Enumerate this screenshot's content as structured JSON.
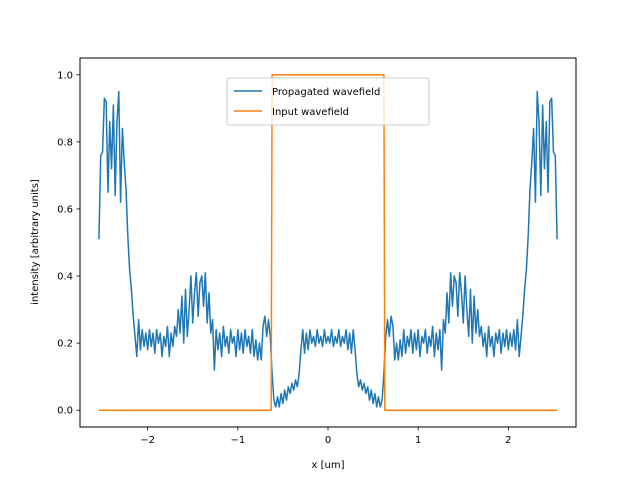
{
  "chart_data": {
    "type": "line",
    "title": "",
    "xlabel": "x [um]",
    "ylabel": "intensity [arbitrary units]",
    "xlim": [
      -2.75,
      2.75
    ],
    "ylim": [
      -0.05,
      1.05
    ],
    "xticks": [
      -2,
      -1,
      0,
      1,
      2
    ],
    "xtick_labels": [
      "−2",
      "−1",
      "0",
      "1",
      "2"
    ],
    "yticks": [
      0.0,
      0.2,
      0.4,
      0.6,
      0.8,
      1.0
    ],
    "ytick_labels": [
      "0.0",
      "0.2",
      "0.4",
      "0.6",
      "0.8",
      "1.0"
    ],
    "grid": false,
    "legend_position": "upper-center",
    "series": [
      {
        "name": "Propagated wavefield",
        "color": "#1f77b4",
        "points": [
          [
            -2.54,
            0.51
          ],
          [
            -2.52,
            0.76
          ],
          [
            -2.5,
            0.77
          ],
          [
            -2.48,
            0.93
          ],
          [
            -2.46,
            0.92
          ],
          [
            -2.44,
            0.65
          ],
          [
            -2.42,
            0.86
          ],
          [
            -2.4,
            0.72
          ],
          [
            -2.38,
            0.91
          ],
          [
            -2.36,
            0.64
          ],
          [
            -2.34,
            0.86
          ],
          [
            -2.32,
            0.95
          ],
          [
            -2.3,
            0.62
          ],
          [
            -2.28,
            0.84
          ],
          [
            -2.26,
            0.74
          ],
          [
            -2.24,
            0.66
          ],
          [
            -2.22,
            0.52
          ],
          [
            -2.2,
            0.42
          ],
          [
            -2.18,
            0.36
          ],
          [
            -2.16,
            0.28
          ],
          [
            -2.14,
            0.22
          ],
          [
            -2.12,
            0.16
          ],
          [
            -2.1,
            0.27
          ],
          [
            -2.08,
            0.18
          ],
          [
            -2.06,
            0.24
          ],
          [
            -2.04,
            0.19
          ],
          [
            -2.02,
            0.23
          ],
          [
            -2.0,
            0.18
          ],
          [
            -1.98,
            0.24
          ],
          [
            -1.96,
            0.19
          ],
          [
            -1.94,
            0.23
          ],
          [
            -1.92,
            0.17
          ],
          [
            -1.9,
            0.24
          ],
          [
            -1.88,
            0.2
          ],
          [
            -1.86,
            0.23
          ],
          [
            -1.84,
            0.16
          ],
          [
            -1.82,
            0.22
          ],
          [
            -1.8,
            0.19
          ],
          [
            -1.78,
            0.25
          ],
          [
            -1.76,
            0.16
          ],
          [
            -1.74,
            0.23
          ],
          [
            -1.72,
            0.19
          ],
          [
            -1.7,
            0.25
          ],
          [
            -1.68,
            0.22
          ],
          [
            -1.66,
            0.3
          ],
          [
            -1.64,
            0.23
          ],
          [
            -1.62,
            0.34
          ],
          [
            -1.6,
            0.2
          ],
          [
            -1.58,
            0.36
          ],
          [
            -1.56,
            0.22
          ],
          [
            -1.54,
            0.3
          ],
          [
            -1.52,
            0.4
          ],
          [
            -1.5,
            0.26
          ],
          [
            -1.48,
            0.35
          ],
          [
            -1.46,
            0.41
          ],
          [
            -1.44,
            0.28
          ],
          [
            -1.42,
            0.38
          ],
          [
            -1.4,
            0.4
          ],
          [
            -1.38,
            0.31
          ],
          [
            -1.36,
            0.41
          ],
          [
            -1.34,
            0.26
          ],
          [
            -1.32,
            0.35
          ],
          [
            -1.3,
            0.23
          ],
          [
            -1.28,
            0.27
          ],
          [
            -1.26,
            0.12
          ],
          [
            -1.24,
            0.24
          ],
          [
            -1.22,
            0.18
          ],
          [
            -1.2,
            0.23
          ],
          [
            -1.18,
            0.16
          ],
          [
            -1.16,
            0.25
          ],
          [
            -1.14,
            0.19
          ],
          [
            -1.12,
            0.22
          ],
          [
            -1.1,
            0.17
          ],
          [
            -1.08,
            0.24
          ],
          [
            -1.06,
            0.2
          ],
          [
            -1.04,
            0.22
          ],
          [
            -1.02,
            0.16
          ],
          [
            -1.0,
            0.24
          ],
          [
            -0.98,
            0.18
          ],
          [
            -0.96,
            0.23
          ],
          [
            -0.94,
            0.17
          ],
          [
            -0.92,
            0.24
          ],
          [
            -0.9,
            0.19
          ],
          [
            -0.88,
            0.22
          ],
          [
            -0.86,
            0.17
          ],
          [
            -0.84,
            0.24
          ],
          [
            -0.82,
            0.16
          ],
          [
            -0.8,
            0.21
          ],
          [
            -0.78,
            0.15
          ],
          [
            -0.76,
            0.2
          ],
          [
            -0.74,
            0.15
          ],
          [
            -0.72,
            0.25
          ],
          [
            -0.7,
            0.28
          ],
          [
            -0.68,
            0.22
          ],
          [
            -0.66,
            0.27
          ],
          [
            -0.64,
            0.22
          ],
          [
            -0.62,
            0.11
          ],
          [
            -0.6,
            0.03
          ],
          [
            -0.58,
            0.01
          ],
          [
            -0.56,
            0.04
          ],
          [
            -0.54,
            0.01
          ],
          [
            -0.52,
            0.05
          ],
          [
            -0.5,
            0.02
          ],
          [
            -0.48,
            0.06
          ],
          [
            -0.46,
            0.03
          ],
          [
            -0.44,
            0.07
          ],
          [
            -0.42,
            0.05
          ],
          [
            -0.4,
            0.08
          ],
          [
            -0.38,
            0.06
          ],
          [
            -0.36,
            0.09
          ],
          [
            -0.34,
            0.07
          ],
          [
            -0.32,
            0.11
          ],
          [
            -0.3,
            0.18
          ],
          [
            -0.28,
            0.24
          ],
          [
            -0.26,
            0.17
          ],
          [
            -0.24,
            0.23
          ],
          [
            -0.22,
            0.18
          ],
          [
            -0.2,
            0.24
          ],
          [
            -0.18,
            0.2
          ],
          [
            -0.16,
            0.22
          ],
          [
            -0.14,
            0.19
          ],
          [
            -0.12,
            0.24
          ],
          [
            -0.1,
            0.2
          ],
          [
            -0.08,
            0.22
          ],
          [
            -0.06,
            0.19
          ],
          [
            -0.04,
            0.24
          ],
          [
            -0.02,
            0.2
          ],
          [
            0.0,
            0.22
          ],
          [
            0.02,
            0.2
          ],
          [
            0.04,
            0.24
          ],
          [
            0.06,
            0.19
          ],
          [
            0.08,
            0.22
          ],
          [
            0.1,
            0.2
          ],
          [
            0.12,
            0.24
          ],
          [
            0.14,
            0.19
          ],
          [
            0.16,
            0.22
          ],
          [
            0.18,
            0.2
          ],
          [
            0.2,
            0.24
          ],
          [
            0.22,
            0.18
          ],
          [
            0.24,
            0.23
          ],
          [
            0.26,
            0.17
          ],
          [
            0.28,
            0.24
          ],
          [
            0.3,
            0.18
          ],
          [
            0.32,
            0.11
          ],
          [
            0.34,
            0.07
          ],
          [
            0.36,
            0.09
          ],
          [
            0.38,
            0.06
          ],
          [
            0.4,
            0.08
          ],
          [
            0.42,
            0.05
          ],
          [
            0.44,
            0.07
          ],
          [
            0.46,
            0.03
          ],
          [
            0.48,
            0.06
          ],
          [
            0.5,
            0.02
          ],
          [
            0.52,
            0.05
          ],
          [
            0.54,
            0.01
          ],
          [
            0.56,
            0.04
          ],
          [
            0.58,
            0.01
          ],
          [
            0.6,
            0.03
          ],
          [
            0.62,
            0.11
          ],
          [
            0.64,
            0.22
          ],
          [
            0.66,
            0.27
          ],
          [
            0.68,
            0.22
          ],
          [
            0.7,
            0.28
          ],
          [
            0.72,
            0.25
          ],
          [
            0.74,
            0.15
          ],
          [
            0.76,
            0.2
          ],
          [
            0.78,
            0.15
          ],
          [
            0.8,
            0.21
          ],
          [
            0.82,
            0.16
          ],
          [
            0.84,
            0.24
          ],
          [
            0.86,
            0.17
          ],
          [
            0.88,
            0.22
          ],
          [
            0.9,
            0.19
          ],
          [
            0.92,
            0.24
          ],
          [
            0.94,
            0.17
          ],
          [
            0.96,
            0.23
          ],
          [
            0.98,
            0.18
          ],
          [
            1.0,
            0.24
          ],
          [
            1.02,
            0.16
          ],
          [
            1.04,
            0.22
          ],
          [
            1.06,
            0.2
          ],
          [
            1.08,
            0.24
          ],
          [
            1.1,
            0.17
          ],
          [
            1.12,
            0.22
          ],
          [
            1.14,
            0.19
          ],
          [
            1.16,
            0.25
          ],
          [
            1.18,
            0.16
          ],
          [
            1.2,
            0.23
          ],
          [
            1.22,
            0.18
          ],
          [
            1.24,
            0.24
          ],
          [
            1.26,
            0.12
          ],
          [
            1.28,
            0.27
          ],
          [
            1.3,
            0.23
          ],
          [
            1.32,
            0.35
          ],
          [
            1.34,
            0.26
          ],
          [
            1.36,
            0.41
          ],
          [
            1.38,
            0.31
          ],
          [
            1.4,
            0.4
          ],
          [
            1.42,
            0.38
          ],
          [
            1.44,
            0.28
          ],
          [
            1.46,
            0.41
          ],
          [
            1.48,
            0.35
          ],
          [
            1.5,
            0.26
          ],
          [
            1.52,
            0.4
          ],
          [
            1.54,
            0.3
          ],
          [
            1.56,
            0.22
          ],
          [
            1.58,
            0.36
          ],
          [
            1.6,
            0.2
          ],
          [
            1.62,
            0.34
          ],
          [
            1.64,
            0.23
          ],
          [
            1.66,
            0.3
          ],
          [
            1.68,
            0.22
          ],
          [
            1.7,
            0.25
          ],
          [
            1.72,
            0.19
          ],
          [
            1.74,
            0.23
          ],
          [
            1.76,
            0.16
          ],
          [
            1.78,
            0.25
          ],
          [
            1.8,
            0.19
          ],
          [
            1.82,
            0.22
          ],
          [
            1.84,
            0.16
          ],
          [
            1.86,
            0.23
          ],
          [
            1.88,
            0.2
          ],
          [
            1.9,
            0.24
          ],
          [
            1.92,
            0.17
          ],
          [
            1.94,
            0.23
          ],
          [
            1.96,
            0.19
          ],
          [
            1.98,
            0.24
          ],
          [
            2.0,
            0.18
          ],
          [
            2.02,
            0.23
          ],
          [
            2.04,
            0.19
          ],
          [
            2.06,
            0.24
          ],
          [
            2.08,
            0.18
          ],
          [
            2.1,
            0.27
          ],
          [
            2.12,
            0.16
          ],
          [
            2.14,
            0.22
          ],
          [
            2.16,
            0.28
          ],
          [
            2.18,
            0.36
          ],
          [
            2.2,
            0.42
          ],
          [
            2.22,
            0.52
          ],
          [
            2.24,
            0.66
          ],
          [
            2.26,
            0.74
          ],
          [
            2.28,
            0.84
          ],
          [
            2.3,
            0.62
          ],
          [
            2.32,
            0.95
          ],
          [
            2.34,
            0.86
          ],
          [
            2.36,
            0.64
          ],
          [
            2.38,
            0.91
          ],
          [
            2.4,
            0.72
          ],
          [
            2.42,
            0.86
          ],
          [
            2.44,
            0.65
          ],
          [
            2.46,
            0.92
          ],
          [
            2.48,
            0.93
          ],
          [
            2.5,
            0.77
          ],
          [
            2.52,
            0.76
          ],
          [
            2.54,
            0.51
          ]
        ]
      },
      {
        "name": "Input wavefield",
        "color": "#ff7f0e",
        "points": [
          [
            -2.54,
            0.0
          ],
          [
            -0.63,
            0.0
          ],
          [
            -0.62,
            1.0
          ],
          [
            0.62,
            1.0
          ],
          [
            0.63,
            0.0
          ],
          [
            2.54,
            0.0
          ]
        ]
      }
    ]
  }
}
